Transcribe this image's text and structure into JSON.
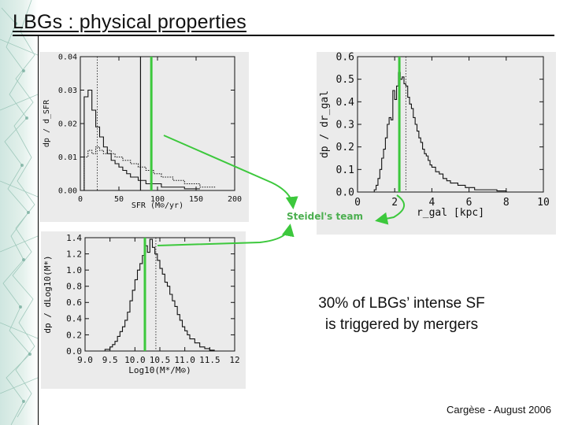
{
  "slide": {
    "title": "LBGs : physical properties",
    "statement_line1": "30% of LBGs’ intense SF",
    "statement_line2": "is triggered by mergers",
    "footer": "Cargèse - August 2006",
    "annotation": "Steidel's team"
  },
  "colors": {
    "highlight": "#3cc83c",
    "axis": "#111111",
    "panel_bg": "#ebebeb",
    "sidebar": "#cfe6e0"
  },
  "chart_data": [
    {
      "id": "sfr",
      "type": "line",
      "title": "",
      "xlabel": "SFR (M⊙/yr)",
      "ylabel": "dp / d_SFR",
      "xlim": [
        0,
        200
      ],
      "ylim": [
        0,
        0.04
      ],
      "xticks": [
        0,
        50,
        100,
        150,
        200
      ],
      "yticks": [
        0.0,
        0.01,
        0.02,
        0.03,
        0.04
      ],
      "ytick_labels": [
        "0.00",
        "0.01",
        "0.02",
        "0.03",
        "0.04"
      ],
      "series": [
        {
          "style": "solid-step",
          "x": [
            5,
            10,
            15,
            20,
            25,
            30,
            35,
            40,
            45,
            50,
            55,
            60,
            65,
            70,
            75,
            80,
            85,
            90,
            95,
            100,
            105,
            110,
            115,
            120,
            125,
            130,
            135,
            140,
            145,
            150
          ],
          "values": [
            0.028,
            0.03,
            0.024,
            0.019,
            0.016,
            0.013,
            0.011,
            0.009,
            0.008,
            0.007,
            0.006,
            0.005,
            0.004,
            0.004,
            0.003,
            0.003,
            0.002,
            0.002,
            0.002,
            0.002,
            0.001,
            0.001,
            0.001,
            0.001,
            0.001,
            0.001,
            0.0005,
            0.0005,
            0.0005,
            0.0005
          ]
        },
        {
          "style": "dotted-step",
          "x": [
            5,
            10,
            15,
            20,
            25,
            30,
            35,
            40,
            45,
            50,
            55,
            60,
            65,
            70,
            75,
            80,
            85,
            90,
            95,
            100,
            105,
            110,
            115,
            120,
            125,
            130,
            135,
            140,
            145,
            150,
            155,
            160,
            165,
            170
          ],
          "values": [
            0.01,
            0.012,
            0.011,
            0.013,
            0.012,
            0.011,
            0.012,
            0.011,
            0.01,
            0.01,
            0.009,
            0.009,
            0.008,
            0.008,
            0.007,
            0.007,
            0.006,
            0.006,
            0.005,
            0.005,
            0.004,
            0.004,
            0.004,
            0.003,
            0.003,
            0.003,
            0.002,
            0.002,
            0.002,
            0.002,
            0.001,
            0.001,
            0.001,
            0.001
          ]
        }
      ],
      "reference_lines": [
        {
          "style": "dotted",
          "x": 22
        },
        {
          "style": "solid",
          "x": 78
        }
      ],
      "highlight_x": 92
    },
    {
      "id": "rgal",
      "type": "line",
      "title": "",
      "xlabel": "r_gal [kpc]",
      "ylabel": "dp / dr_gal",
      "xlim": [
        0,
        10
      ],
      "ylim": [
        0,
        0.6
      ],
      "xticks": [
        0,
        2,
        4,
        6,
        8,
        10
      ],
      "yticks": [
        0,
        0.1,
        0.2,
        0.3,
        0.4,
        0.5,
        0.6
      ],
      "ytick_labels": [
        "0.0",
        "0.1",
        "0.2",
        "0.3",
        "0.4",
        "0.5",
        "0.6"
      ],
      "series": [
        {
          "style": "solid-step",
          "x": [
            0.9,
            1.0,
            1.1,
            1.2,
            1.3,
            1.4,
            1.5,
            1.6,
            1.7,
            1.8,
            1.9,
            2.0,
            2.1,
            2.2,
            2.3,
            2.4,
            2.5,
            2.6,
            2.7,
            2.8,
            2.9,
            3.0,
            3.1,
            3.2,
            3.3,
            3.4,
            3.5,
            3.6,
            3.7,
            3.8,
            3.9,
            4.0,
            4.2,
            4.4,
            4.6,
            4.8,
            5.0,
            5.2,
            5.4,
            5.6,
            5.8,
            6.0,
            6.3,
            6.6,
            7.0,
            7.5,
            8.0
          ],
          "values": [
            0.01,
            0.03,
            0.06,
            0.1,
            0.15,
            0.19,
            0.24,
            0.3,
            0.33,
            0.32,
            0.45,
            0.41,
            0.47,
            0.53,
            0.5,
            0.51,
            0.48,
            0.47,
            0.42,
            0.39,
            0.37,
            0.33,
            0.3,
            0.27,
            0.24,
            0.22,
            0.19,
            0.17,
            0.16,
            0.14,
            0.12,
            0.11,
            0.09,
            0.08,
            0.06,
            0.05,
            0.04,
            0.04,
            0.03,
            0.03,
            0.02,
            0.02,
            0.01,
            0.01,
            0.01,
            0.005,
            0.0
          ]
        }
      ],
      "reference_lines": [
        {
          "style": "dotted",
          "x": 2.6
        }
      ],
      "highlight_x": 2.25
    },
    {
      "id": "mass",
      "type": "line",
      "title": "",
      "xlabel": "Log10(M*/M⊙)",
      "ylabel": "dp / dLog10(M*)",
      "xlim": [
        9.0,
        12.0
      ],
      "ylim": [
        0,
        1.4
      ],
      "xticks": [
        9.0,
        9.5,
        10.0,
        10.5,
        11.0,
        11.5,
        12.0
      ],
      "xtick_labels": [
        "9.0",
        "9.5",
        "10.0",
        "10.5",
        "11.0",
        "11.5",
        "12"
      ],
      "yticks": [
        0.0,
        0.2,
        0.4,
        0.6,
        0.8,
        1.0,
        1.2,
        1.4
      ],
      "ytick_labels": [
        "0.0",
        "0.2",
        "0.4",
        "0.6",
        "0.8",
        "1.0",
        "1.2",
        "1.4"
      ],
      "series": [
        {
          "style": "solid-step",
          "x": [
            9.4,
            9.5,
            9.55,
            9.6,
            9.65,
            9.7,
            9.75,
            9.8,
            9.85,
            9.9,
            9.95,
            10.0,
            10.05,
            10.1,
            10.15,
            10.2,
            10.25,
            10.3,
            10.35,
            10.4,
            10.45,
            10.5,
            10.55,
            10.6,
            10.65,
            10.7,
            10.75,
            10.8,
            10.85,
            10.9,
            10.95,
            11.0,
            11.05,
            11.1,
            11.2,
            11.3,
            11.4,
            11.5
          ],
          "values": [
            0.02,
            0.05,
            0.08,
            0.12,
            0.18,
            0.24,
            0.3,
            0.38,
            0.48,
            0.62,
            0.75,
            0.88,
            1.0,
            1.08,
            1.18,
            1.3,
            1.22,
            1.38,
            1.28,
            1.2,
            1.12,
            1.02,
            0.95,
            0.85,
            0.8,
            0.7,
            0.62,
            0.55,
            0.45,
            0.38,
            0.3,
            0.25,
            0.2,
            0.15,
            0.1,
            0.05,
            0.03,
            0.01
          ]
        }
      ],
      "reference_lines": [
        {
          "style": "dotted",
          "x": 10.42
        }
      ],
      "highlight_x": 10.2
    }
  ]
}
